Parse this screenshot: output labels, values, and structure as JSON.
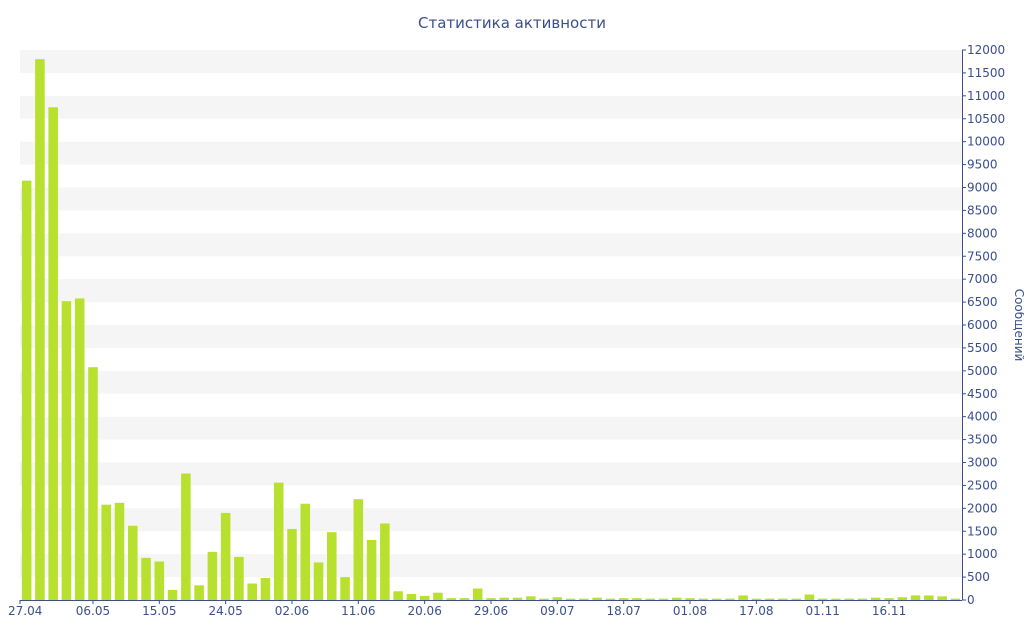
{
  "chart_data": {
    "type": "bar",
    "title": "Статистика активности",
    "ylabel": "Сообщений",
    "ylim": [
      0,
      12000
    ],
    "y_ticks": [
      0,
      500,
      1000,
      1500,
      2000,
      2500,
      3000,
      3500,
      4000,
      4500,
      5000,
      5500,
      6000,
      6500,
      7000,
      7500,
      8000,
      8500,
      9000,
      9500,
      10000,
      10500,
      11000,
      11500,
      12000
    ],
    "x_tick_labels": [
      "27.04",
      "06.05",
      "15.05",
      "24.05",
      "02.06",
      "11.06",
      "20.06",
      "29.06",
      "09.07",
      "18.07",
      "01.08",
      "17.08",
      "01.11",
      "16.11"
    ],
    "x_tick_positions": [
      0,
      5,
      10,
      15,
      20,
      25,
      30,
      35,
      40,
      45,
      50,
      55,
      60,
      65
    ],
    "y_axis_position": "right",
    "grid": "horizontal alternating bands",
    "bar_color": "#b8e02e",
    "values": [
      9150,
      11800,
      10750,
      6520,
      6580,
      5080,
      2080,
      2120,
      1620,
      920,
      840,
      220,
      2760,
      320,
      1050,
      1900,
      940,
      360,
      480,
      2560,
      1550,
      2100,
      820,
      1480,
      500,
      2200,
      1310,
      1670,
      190,
      130,
      90,
      160,
      40,
      40,
      250,
      40,
      50,
      50,
      80,
      30,
      60,
      30,
      30,
      50,
      30,
      40,
      40,
      30,
      30,
      50,
      40,
      30,
      30,
      30,
      100,
      30,
      30,
      30,
      30,
      120,
      30,
      30,
      30,
      30,
      50,
      40,
      60,
      100,
      100,
      80,
      30
    ]
  }
}
